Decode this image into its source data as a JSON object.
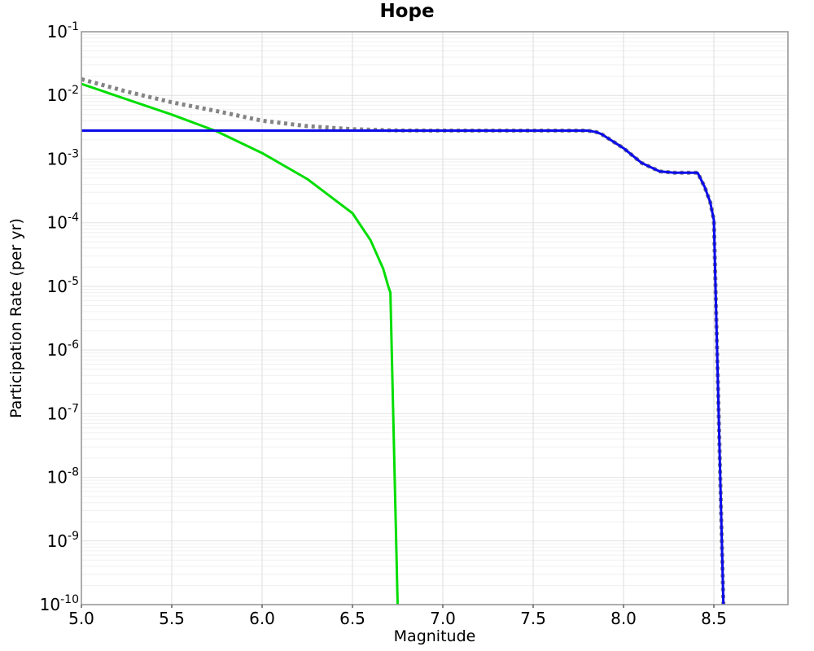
{
  "chart_data": {
    "type": "line",
    "title": "Hope",
    "xlabel": "Magnitude",
    "ylabel": "Participation Rate (per yr)",
    "xlim": [
      5.0,
      8.91
    ],
    "ylim_exponents": [
      -1,
      -10
    ],
    "grid": true,
    "legend": "none",
    "x_ticks": [
      {
        "value": 5.0,
        "label": "5.0"
      },
      {
        "value": 5.5,
        "label": "5.5"
      },
      {
        "value": 6.0,
        "label": "6.0"
      },
      {
        "value": 6.5,
        "label": "6.5"
      },
      {
        "value": 7.0,
        "label": "7.0"
      },
      {
        "value": 7.5,
        "label": "7.5"
      },
      {
        "value": 8.0,
        "label": "8.0"
      },
      {
        "value": 8.5,
        "label": "8.5"
      }
    ],
    "y_ticks": {
      "base": "10",
      "exponents": [
        "-1",
        "-2",
        "-3",
        "-4",
        "-5",
        "-6",
        "-7",
        "-8",
        "-9",
        "-10"
      ]
    },
    "colors": {
      "grid_minor": "#f0f0f0",
      "grid_major": "#e2e2e2",
      "grid_vertical": "#dcdcdc",
      "border": "#9a9a9a",
      "tick": "#555555",
      "text": "#000000"
    },
    "series": [
      {
        "name": "total-rate-dotted",
        "color": "#848484",
        "style": "dotted",
        "width": 5,
        "points": [
          [
            5.0,
            0.018
          ],
          [
            5.25,
            0.0115
          ],
          [
            5.5,
            0.0078
          ],
          [
            5.75,
            0.00565
          ],
          [
            6.0,
            0.004
          ],
          [
            6.25,
            0.00329
          ],
          [
            6.5,
            0.00294
          ],
          [
            6.75,
            0.00281
          ],
          [
            7.0,
            0.0028
          ],
          [
            7.8,
            0.0028
          ],
          [
            7.85,
            0.00265
          ],
          [
            7.88,
            0.00245
          ],
          [
            8.0,
            0.00148
          ],
          [
            8.1,
            0.00087
          ],
          [
            8.2,
            0.00064
          ],
          [
            8.28,
            0.00061
          ],
          [
            8.41,
            0.00061
          ],
          [
            8.45,
            0.00036
          ],
          [
            8.48,
            0.00021
          ],
          [
            8.5,
            0.00011
          ],
          [
            8.553,
            1e-10
          ]
        ]
      },
      {
        "name": "green-rate",
        "color": "#00dd00",
        "style": "solid",
        "width": 3,
        "points": [
          [
            5.0,
            0.0152
          ],
          [
            5.25,
            0.0087
          ],
          [
            5.5,
            0.005
          ],
          [
            5.75,
            0.00272
          ],
          [
            6.0,
            0.00124
          ],
          [
            6.25,
            0.000485
          ],
          [
            6.5,
            0.000141
          ],
          [
            6.6,
            5.3e-05
          ],
          [
            6.67,
            1.9e-05
          ],
          [
            6.7,
            9.6e-06
          ],
          [
            6.71,
            8e-06
          ],
          [
            6.75,
            1e-10
          ]
        ]
      },
      {
        "name": "blue-rate",
        "color": "#0b0bea",
        "style": "solid",
        "width": 3,
        "points": [
          [
            5.0,
            0.0028
          ],
          [
            7.8,
            0.0028
          ],
          [
            7.85,
            0.00265
          ],
          [
            7.88,
            0.00245
          ],
          [
            8.0,
            0.00148
          ],
          [
            8.1,
            0.00087
          ],
          [
            8.2,
            0.00064
          ],
          [
            8.28,
            0.00061
          ],
          [
            8.41,
            0.00061
          ],
          [
            8.45,
            0.00036
          ],
          [
            8.48,
            0.00021
          ],
          [
            8.5,
            0.00011
          ],
          [
            8.553,
            1e-10
          ]
        ]
      }
    ]
  }
}
